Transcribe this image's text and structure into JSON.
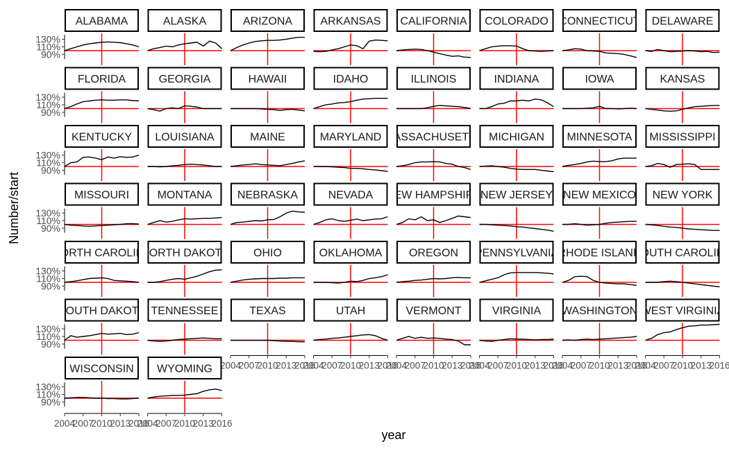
{
  "chart_data": {
    "type": "line",
    "title": "",
    "xlabel": "year",
    "ylabel": "Number/start",
    "x_ticks": [
      2004,
      2007,
      2010,
      2013,
      2016
    ],
    "y_ticks": [
      {
        "value": 0.9,
        "label": "90%"
      },
      {
        "value": 1.1,
        "label": "110%"
      },
      {
        "value": 1.3,
        "label": "130%"
      }
    ],
    "xlim": [
      2004,
      2016
    ],
    "ylim": [
      0.78,
      1.42
    ],
    "reference_lines": {
      "y": 1.0,
      "x": 2010,
      "color": "#ff0000"
    },
    "series_color": "#000000",
    "x": [
      2004,
      2005,
      2006,
      2007,
      2008,
      2009,
      2010,
      2011,
      2012,
      2013,
      2014,
      2015,
      2016
    ],
    "panels": [
      {
        "label": "ALABAMA",
        "values": [
          1.0,
          1.05,
          1.1,
          1.15,
          1.18,
          1.2,
          1.22,
          1.23,
          1.22,
          1.21,
          1.18,
          1.15,
          1.1
        ]
      },
      {
        "label": "ALASKA",
        "values": [
          1.0,
          1.05,
          1.08,
          1.12,
          1.1,
          1.15,
          1.18,
          1.2,
          1.22,
          1.12,
          1.25,
          1.2,
          1.05
        ]
      },
      {
        "label": "ARIZONA",
        "values": [
          1.0,
          1.08,
          1.15,
          1.2,
          1.24,
          1.26,
          1.27,
          1.27,
          1.28,
          1.3,
          1.33,
          1.35,
          1.35
        ]
      },
      {
        "label": "ARKANSAS",
        "values": [
          0.98,
          0.97,
          0.98,
          1.02,
          1.05,
          1.1,
          1.15,
          1.13,
          1.05,
          1.25,
          1.28,
          1.27,
          1.26
        ]
      },
      {
        "label": "CALIFORNIA",
        "values": [
          1.0,
          1.02,
          1.03,
          1.04,
          1.03,
          1.0,
          0.96,
          0.92,
          0.88,
          0.85,
          0.86,
          0.83,
          0.82
        ]
      },
      {
        "label": "COLORADO",
        "values": [
          1.0,
          1.05,
          1.1,
          1.12,
          1.13,
          1.13,
          1.12,
          1.05,
          1.0,
          0.99,
          0.98,
          0.99,
          1.0
        ]
      },
      {
        "label": "CONNECTICUT",
        "values": [
          1.0,
          1.02,
          1.05,
          1.04,
          1.0,
          0.99,
          0.98,
          0.94,
          0.93,
          0.92,
          0.9,
          0.86,
          0.82
        ]
      },
      {
        "label": "DELAWARE",
        "values": [
          1.0,
          0.98,
          1.03,
          1.0,
          0.97,
          0.98,
          0.99,
          1.0,
          0.99,
          0.97,
          0.98,
          0.95,
          0.96
        ]
      },
      {
        "label": "FLORIDA",
        "values": [
          1.0,
          1.05,
          1.12,
          1.18,
          1.2,
          1.22,
          1.23,
          1.22,
          1.22,
          1.23,
          1.23,
          1.21,
          1.2
        ]
      },
      {
        "label": "GEORGIA",
        "values": [
          1.0,
          0.97,
          0.93,
          1.0,
          1.02,
          1.0,
          1.07,
          1.06,
          1.04,
          1.0,
          1.0,
          1.0,
          1.0
        ]
      },
      {
        "label": "HAWAII",
        "values": [
          1.0,
          1.0,
          1.0,
          1.0,
          1.0,
          0.99,
          0.98,
          0.97,
          0.95,
          0.97,
          0.98,
          0.96,
          0.94
        ]
      },
      {
        "label": "IDAHO",
        "values": [
          1.0,
          1.05,
          1.1,
          1.12,
          1.15,
          1.16,
          1.18,
          1.22,
          1.25,
          1.26,
          1.27,
          1.27,
          1.27
        ]
      },
      {
        "label": "ILLINOIS",
        "values": [
          1.0,
          1.0,
          1.0,
          1.0,
          1.0,
          1.02,
          1.06,
          1.08,
          1.07,
          1.06,
          1.05,
          1.03,
          1.0
        ]
      },
      {
        "label": "INDIANA",
        "values": [
          1.0,
          1.0,
          1.05,
          1.12,
          1.14,
          1.2,
          1.2,
          1.22,
          1.2,
          1.25,
          1.23,
          1.15,
          1.05
        ]
      },
      {
        "label": "IOWA",
        "values": [
          1.0,
          1.0,
          1.0,
          1.0,
          1.01,
          1.02,
          1.06,
          1.0,
          1.0,
          0.99,
          1.0,
          1.01,
          1.0
        ]
      },
      {
        "label": "KANSAS",
        "values": [
          1.0,
          0.98,
          0.96,
          0.94,
          0.93,
          0.94,
          0.98,
          1.02,
          1.05,
          1.06,
          1.07,
          1.08,
          1.08
        ]
      },
      {
        "label": "KENTUCKY",
        "values": [
          1.0,
          1.1,
          1.12,
          1.24,
          1.25,
          1.22,
          1.18,
          1.25,
          1.22,
          1.26,
          1.24,
          1.25,
          1.3
        ]
      },
      {
        "label": "LOUISIANA",
        "values": [
          1.0,
          1.0,
          0.99,
          1.0,
          1.02,
          1.03,
          1.05,
          1.06,
          1.05,
          1.04,
          1.02,
          1.0,
          1.0
        ]
      },
      {
        "label": "MAINE",
        "values": [
          1.0,
          1.02,
          1.04,
          1.05,
          1.07,
          1.05,
          1.04,
          1.03,
          1.02,
          1.05,
          1.08,
          1.12,
          1.15
        ]
      },
      {
        "label": "MARYLAND",
        "values": [
          1.0,
          1.0,
          1.0,
          0.99,
          0.98,
          0.97,
          0.95,
          0.95,
          0.94,
          0.92,
          0.91,
          0.89,
          0.87
        ]
      },
      {
        "label": "MASSACHUSETTS",
        "values": [
          1.0,
          1.02,
          1.05,
          1.1,
          1.12,
          1.12,
          1.13,
          1.12,
          1.08,
          1.06,
          1.0,
          0.97,
          0.92
        ]
      },
      {
        "label": "MICHIGAN",
        "values": [
          1.0,
          1.01,
          1.02,
          1.0,
          0.98,
          0.95,
          0.93,
          0.92,
          0.92,
          0.92,
          0.9,
          0.88,
          0.86
        ]
      },
      {
        "label": "MINNESOTA",
        "values": [
          1.0,
          1.03,
          1.05,
          1.08,
          1.12,
          1.14,
          1.13,
          1.13,
          1.15,
          1.2,
          1.22,
          1.22,
          1.22
        ]
      },
      {
        "label": "MISSISSIPPI",
        "values": [
          1.0,
          1.02,
          1.08,
          1.05,
          0.98,
          1.05,
          1.06,
          1.07,
          1.05,
          0.92,
          0.92,
          0.92,
          0.92
        ]
      },
      {
        "label": "MISSOURI",
        "values": [
          1.0,
          0.98,
          0.97,
          0.96,
          0.95,
          0.96,
          0.97,
          0.98,
          0.99,
          1.0,
          1.02,
          1.02,
          1.01
        ]
      },
      {
        "label": "MONTANA",
        "values": [
          1.0,
          1.05,
          1.1,
          1.06,
          1.08,
          1.12,
          1.15,
          1.14,
          1.15,
          1.16,
          1.16,
          1.17,
          1.18
        ]
      },
      {
        "label": "NEBRASKA",
        "values": [
          1.0,
          1.05,
          1.06,
          1.08,
          1.1,
          1.09,
          1.12,
          1.13,
          1.2,
          1.3,
          1.35,
          1.33,
          1.32
        ]
      },
      {
        "label": "NEVADA",
        "values": [
          1.0,
          1.05,
          1.12,
          1.15,
          1.1,
          1.08,
          1.11,
          1.14,
          1.1,
          1.12,
          1.14,
          1.15,
          1.2
        ]
      },
      {
        "label": "NEW HAMPSHIRE",
        "values": [
          1.0,
          1.05,
          1.15,
          1.12,
          1.2,
          1.1,
          1.12,
          1.05,
          1.1,
          1.16,
          1.22,
          1.2,
          1.18
        ]
      },
      {
        "label": "NEW JERSEY",
        "values": [
          1.0,
          1.0,
          0.99,
          0.98,
          0.97,
          0.96,
          0.94,
          0.93,
          0.91,
          0.89,
          0.87,
          0.85,
          0.82
        ]
      },
      {
        "label": "NEW MEXICO",
        "values": [
          1.0,
          1.0,
          1.02,
          1.0,
          0.98,
          0.99,
          1.0,
          1.03,
          1.05,
          1.06,
          1.07,
          1.08,
          1.08
        ]
      },
      {
        "label": "NEW YORK",
        "values": [
          1.0,
          0.99,
          0.97,
          0.95,
          0.93,
          0.92,
          0.9,
          0.88,
          0.87,
          0.86,
          0.85,
          0.84,
          0.84
        ]
      },
      {
        "label": "NORTH CAROLINA",
        "values": [
          1.0,
          1.02,
          1.04,
          1.07,
          1.1,
          1.11,
          1.12,
          1.1,
          1.05,
          1.04,
          1.03,
          1.02,
          1.0
        ]
      },
      {
        "label": "NORTH DAKOTA",
        "values": [
          1.0,
          1.0,
          1.02,
          1.05,
          1.08,
          1.1,
          1.08,
          1.12,
          1.16,
          1.22,
          1.28,
          1.32,
          1.33
        ]
      },
      {
        "label": "OHIO",
        "values": [
          1.0,
          1.03,
          1.06,
          1.08,
          1.09,
          1.1,
          1.1,
          1.1,
          1.11,
          1.11,
          1.12,
          1.12,
          1.12
        ]
      },
      {
        "label": "OKLAHOMA",
        "values": [
          1.0,
          1.0,
          1.0,
          0.99,
          0.98,
          1.0,
          1.03,
          1.02,
          1.05,
          1.1,
          1.12,
          1.15,
          1.2
        ]
      },
      {
        "label": "OREGON",
        "values": [
          1.0,
          1.02,
          1.03,
          1.05,
          1.06,
          1.08,
          1.1,
          1.09,
          1.1,
          1.12,
          1.13,
          1.12,
          1.12
        ]
      },
      {
        "label": "PENNSYLVANIA",
        "values": [
          1.0,
          1.04,
          1.08,
          1.12,
          1.2,
          1.25,
          1.26,
          1.26,
          1.26,
          1.26,
          1.25,
          1.24,
          1.22
        ]
      },
      {
        "label": "RHODE ISLAND",
        "values": [
          1.0,
          1.05,
          1.15,
          1.16,
          1.15,
          1.05,
          1.0,
          0.98,
          0.97,
          0.96,
          0.96,
          0.94,
          0.92
        ]
      },
      {
        "label": "SOUTH CAROLINA",
        "values": [
          1.0,
          1.0,
          1.0,
          1.02,
          1.03,
          1.02,
          1.0,
          0.98,
          0.96,
          0.94,
          0.92,
          0.9,
          0.88
        ]
      },
      {
        "label": "SOUTH DAKOTA",
        "values": [
          1.0,
          1.12,
          1.08,
          1.1,
          1.12,
          1.15,
          1.18,
          1.16,
          1.17,
          1.18,
          1.15,
          1.16,
          1.2
        ]
      },
      {
        "label": "TENNESSEE",
        "values": [
          1.0,
          0.98,
          0.97,
          0.98,
          1.0,
          1.02,
          1.03,
          1.04,
          1.05,
          1.06,
          1.05,
          1.04,
          1.04
        ]
      },
      {
        "label": "TEXAS",
        "values": [
          1.0,
          1.0,
          1.0,
          1.0,
          1.0,
          1.0,
          1.0,
          0.99,
          0.98,
          0.97,
          0.97,
          0.96,
          0.96
        ]
      },
      {
        "label": "UTAH",
        "values": [
          1.0,
          1.02,
          1.03,
          1.05,
          1.06,
          1.08,
          1.1,
          1.12,
          1.14,
          1.15,
          1.12,
          1.05,
          1.0
        ]
      },
      {
        "label": "VERMONT",
        "values": [
          1.0,
          1.05,
          1.1,
          1.05,
          1.08,
          1.05,
          1.06,
          1.05,
          1.03,
          1.02,
          0.98,
          0.88,
          0.88
        ]
      },
      {
        "label": "VIRGINIA",
        "values": [
          1.0,
          0.98,
          0.97,
          1.0,
          1.02,
          1.04,
          1.03,
          1.03,
          1.02,
          1.01,
          1.02,
          1.02,
          1.03
        ]
      },
      {
        "label": "WASHINGTON",
        "values": [
          1.0,
          1.01,
          1.0,
          1.02,
          1.03,
          1.02,
          1.03,
          1.04,
          1.05,
          1.06,
          1.07,
          1.08,
          1.1
        ]
      },
      {
        "label": "WEST VIRGINIA",
        "values": [
          1.0,
          1.05,
          1.15,
          1.2,
          1.22,
          1.28,
          1.33,
          1.37,
          1.38,
          1.4,
          1.4,
          1.41,
          1.42
        ]
      },
      {
        "label": "WISCONSIN",
        "values": [
          1.0,
          1.01,
          1.02,
          1.02,
          1.01,
          1.0,
          1.0,
          0.99,
          0.99,
          0.98,
          0.98,
          0.99,
          1.0
        ]
      },
      {
        "label": "WYOMING",
        "values": [
          1.0,
          1.03,
          1.05,
          1.06,
          1.07,
          1.07,
          1.08,
          1.1,
          1.12,
          1.18,
          1.22,
          1.24,
          1.2
        ]
      }
    ]
  }
}
